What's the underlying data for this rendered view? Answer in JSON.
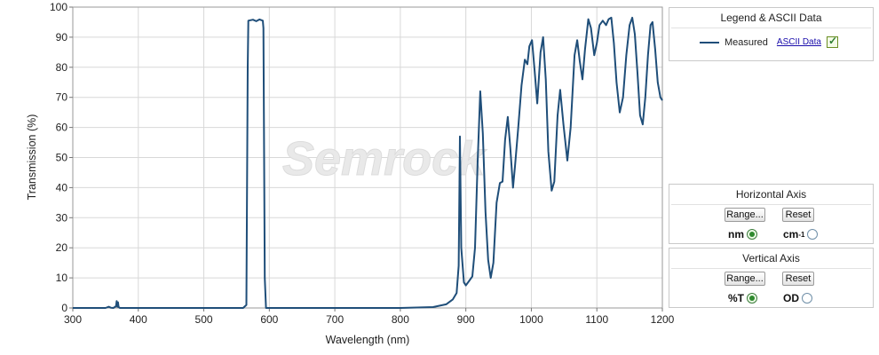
{
  "chart_data": {
    "type": "line",
    "title": "",
    "xlabel": "Wavelength (nm)",
    "ylabel": "Transmission (%)",
    "xlim": [
      300,
      1200
    ],
    "ylim": [
      0,
      100
    ],
    "x_ticks": [
      300,
      400,
      500,
      600,
      700,
      800,
      900,
      1000,
      1100,
      1200
    ],
    "y_ticks": [
      0,
      10,
      20,
      30,
      40,
      50,
      60,
      70,
      80,
      90,
      100
    ],
    "grid": true,
    "watermark": "Semrock",
    "series": [
      {
        "name": "Measured",
        "color": "#1f4e79",
        "points": [
          [
            300,
            0
          ],
          [
            350,
            0
          ],
          [
            355,
            0.4
          ],
          [
            358,
            0.1
          ],
          [
            362,
            0
          ],
          [
            366,
            0.6
          ],
          [
            367,
            2.3
          ],
          [
            368,
            0.4
          ],
          [
            369,
            1.9
          ],
          [
            370,
            0.3
          ],
          [
            372,
            0
          ],
          [
            500,
            0
          ],
          [
            560,
            0
          ],
          [
            565,
            1
          ],
          [
            567,
            80
          ],
          [
            568,
            95.5
          ],
          [
            575,
            95.8
          ],
          [
            580,
            95.3
          ],
          [
            585,
            95.9
          ],
          [
            590,
            95.5
          ],
          [
            591,
            93
          ],
          [
            593,
            10
          ],
          [
            595,
            0
          ],
          [
            800,
            0
          ],
          [
            850,
            0.3
          ],
          [
            870,
            1.2
          ],
          [
            880,
            2.8
          ],
          [
            886,
            5
          ],
          [
            889,
            14
          ],
          [
            891,
            57
          ],
          [
            893,
            20
          ],
          [
            897,
            8.5
          ],
          [
            900,
            7.5
          ],
          [
            905,
            9
          ],
          [
            910,
            10.5
          ],
          [
            914,
            20
          ],
          [
            918,
            48
          ],
          [
            922,
            72
          ],
          [
            926,
            58
          ],
          [
            930,
            32
          ],
          [
            934,
            16
          ],
          [
            938,
            10
          ],
          [
            942,
            15
          ],
          [
            947,
            35
          ],
          [
            952,
            41.5
          ],
          [
            956,
            42
          ],
          [
            960,
            56
          ],
          [
            964,
            63.5
          ],
          [
            968,
            53
          ],
          [
            972,
            40
          ],
          [
            975,
            47
          ],
          [
            980,
            60
          ],
          [
            985,
            74
          ],
          [
            990,
            82.5
          ],
          [
            994,
            81
          ],
          [
            997,
            87
          ],
          [
            1001,
            89
          ],
          [
            1005,
            79
          ],
          [
            1009,
            68
          ],
          [
            1014,
            85
          ],
          [
            1018,
            90
          ],
          [
            1022,
            76
          ],
          [
            1026,
            52
          ],
          [
            1031,
            39
          ],
          [
            1035,
            42
          ],
          [
            1040,
            64
          ],
          [
            1044,
            72.5
          ],
          [
            1049,
            61
          ],
          [
            1055,
            49
          ],
          [
            1060,
            60
          ],
          [
            1066,
            84
          ],
          [
            1070,
            89
          ],
          [
            1074,
            82
          ],
          [
            1078,
            76
          ],
          [
            1082,
            86
          ],
          [
            1087,
            96
          ],
          [
            1091,
            93
          ],
          [
            1096,
            84
          ],
          [
            1100,
            88
          ],
          [
            1104,
            94
          ],
          [
            1109,
            95.5
          ],
          [
            1114,
            94
          ],
          [
            1118,
            96
          ],
          [
            1122,
            96.5
          ],
          [
            1126,
            88
          ],
          [
            1130,
            75
          ],
          [
            1135,
            65
          ],
          [
            1140,
            70
          ],
          [
            1145,
            84
          ],
          [
            1150,
            94
          ],
          [
            1154,
            96.5
          ],
          [
            1158,
            91
          ],
          [
            1162,
            78
          ],
          [
            1166,
            64
          ],
          [
            1170,
            61
          ],
          [
            1174,
            70
          ],
          [
            1178,
            84
          ],
          [
            1182,
            94
          ],
          [
            1185,
            95
          ],
          [
            1189,
            86
          ],
          [
            1193,
            75
          ],
          [
            1197,
            70
          ],
          [
            1200,
            69
          ]
        ]
      }
    ]
  },
  "legend_panel": {
    "title": "Legend & ASCII Data",
    "series_label": "Measured",
    "ascii_link": "ASCII Data",
    "checked": true
  },
  "horizontal_axis_panel": {
    "title": "Horizontal Axis",
    "range_button": "Range...",
    "reset_button": "Reset",
    "option_nm": "nm",
    "option_cm": "cm",
    "option_cm_sup": "-1",
    "selected": "nm"
  },
  "vertical_axis_panel": {
    "title": "Vertical  Axis",
    "range_button": "Range...",
    "reset_button": "Reset",
    "option_t": "%T",
    "option_od": "OD",
    "selected": "%T"
  }
}
